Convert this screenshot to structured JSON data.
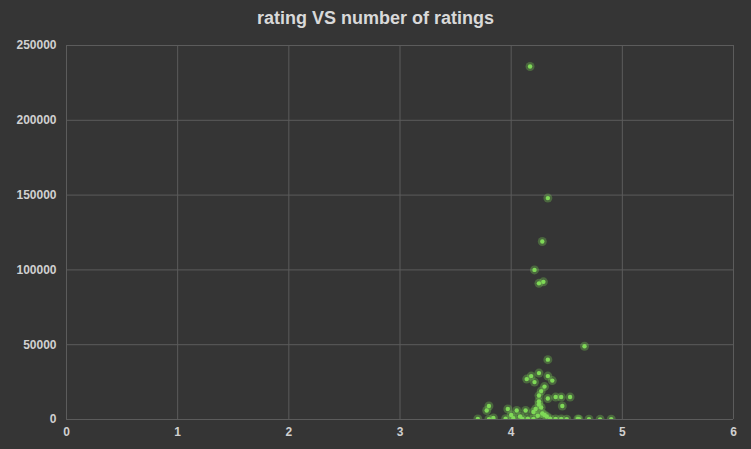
{
  "chart_data": {
    "type": "scatter",
    "title": "rating VS number of ratings",
    "x": [
      4.17,
      4.33,
      4.28,
      4.21,
      4.25,
      4.29,
      4.66,
      4.33,
      4.25,
      4.18,
      4.33,
      4.37,
      4.21,
      4.14,
      4.3,
      4.27,
      4.25,
      4.33,
      4.4,
      4.45,
      4.53,
      4.46,
      4.25,
      4.25,
      4.27,
      4.22,
      4.2,
      4.28,
      4.3,
      4.32,
      4.24,
      3.8,
      3.78,
      3.84,
      3.97,
      4.05,
      4.13,
      4.0,
      4.08,
      3.7,
      3.8,
      3.95,
      4.02,
      4.1,
      4.15,
      4.2,
      4.35,
      4.4,
      4.45,
      4.5,
      4.6,
      4.61,
      4.7,
      4.8,
      4.9
    ],
    "values": [
      236000,
      148000,
      119000,
      100000,
      91000,
      92000,
      49000,
      40000,
      31000,
      29000,
      29000,
      26000,
      25000,
      27000,
      22000,
      19000,
      16000,
      14000,
      15000,
      15000,
      15000,
      9000,
      12000,
      10000,
      8000,
      7000,
      5000,
      4000,
      3000,
      2000,
      2500,
      9000,
      6000,
      1000,
      7000,
      6000,
      6000,
      3000,
      2000,
      300,
      200,
      500,
      800,
      400,
      600,
      300,
      500,
      300,
      400,
      200,
      300,
      150,
      200,
      100,
      150
    ],
    "color": "#7fd957",
    "xlim": [
      0,
      6
    ],
    "xticks": [
      0,
      1,
      2,
      3,
      4,
      5,
      6
    ],
    "ylim": [
      0,
      250000
    ],
    "yticks": [
      0,
      50000,
      100000,
      150000,
      200000,
      250000
    ],
    "grid": true
  }
}
